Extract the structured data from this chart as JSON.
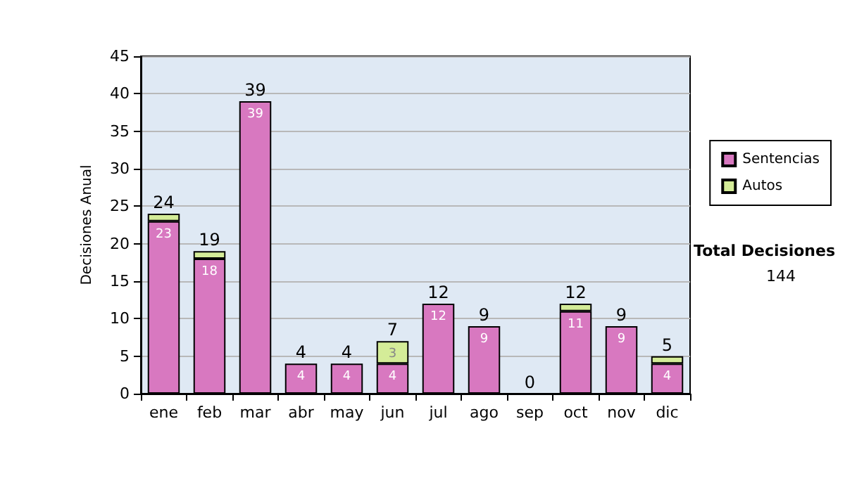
{
  "chart_data": {
    "type": "bar",
    "ylabel": "Decisiones Anual",
    "categories": [
      "ene",
      "feb",
      "mar",
      "abr",
      "may",
      "jun",
      "jul",
      "ago",
      "sep",
      "oct",
      "nov",
      "dic"
    ],
    "series": [
      {
        "name": "Sentencias",
        "color": "#d878c0",
        "values": [
          23,
          18,
          39,
          4,
          4,
          4,
          12,
          9,
          0,
          11,
          9,
          4
        ],
        "value_labels": [
          "23",
          "18",
          "39",
          "4",
          "4",
          "4",
          "12",
          "9",
          null,
          "11",
          "9",
          "4"
        ]
      },
      {
        "name": "Autos",
        "color": "#d4ec98",
        "values": [
          1,
          1,
          0,
          0,
          0,
          3,
          0,
          0,
          0,
          1,
          0,
          1
        ],
        "value_labels": [
          null,
          null,
          null,
          null,
          null,
          "3",
          null,
          null,
          null,
          null,
          null,
          null
        ]
      }
    ],
    "stacked": true,
    "totals": [
      "24",
      "19",
      "39",
      "4",
      "4",
      "7",
      "12",
      "9",
      "0",
      "12",
      "9",
      "5"
    ],
    "ylim": [
      0,
      45
    ],
    "yticks": [
      0,
      5,
      10,
      15,
      20,
      25,
      30,
      35,
      40,
      45
    ],
    "grid": "y",
    "legend": "right",
    "annotations": [
      "Total Decisiones",
      "144"
    ]
  }
}
